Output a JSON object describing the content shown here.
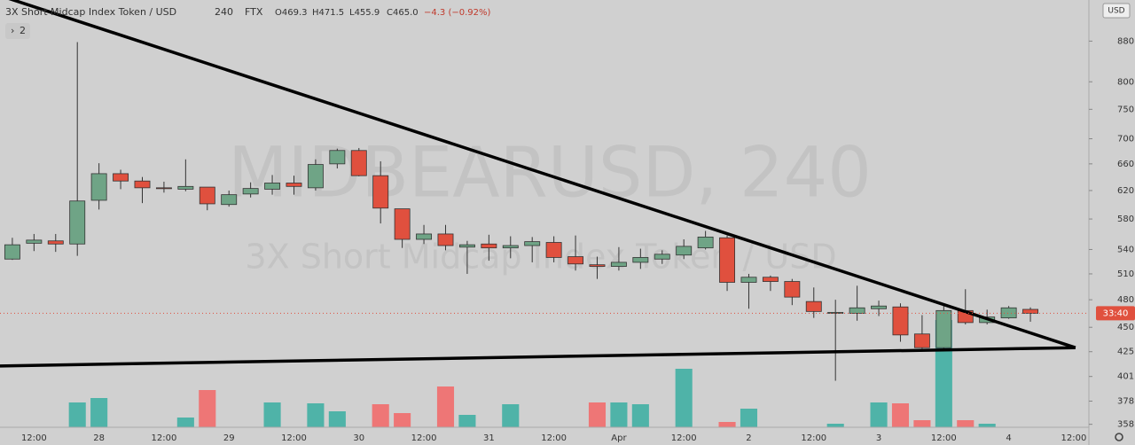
{
  "header": {
    "title": "3X Short Midcap Index Token / USD",
    "interval": "240",
    "exchange": "FTX",
    "open": "O469.3",
    "high": "H471.5",
    "low": "L455.9",
    "close": "C465.0",
    "change": "−4.3 (−0.92%)",
    "indicators": "2"
  },
  "watermark": {
    "symbol": "MIDBEARUSD, 240",
    "name": "3X Short Midcap Index Token / USD"
  },
  "ui": {
    "currency": "USD",
    "countdown": "33:40"
  },
  "chart_data": {
    "type": "candlestick",
    "log_scale": true,
    "grid": true,
    "up_color": "#6fa486",
    "down_color": "#e0503e",
    "volume_up_color": "#4fb3a8",
    "volume_down_color": "#ee7676",
    "open": [
      528,
      548,
      551,
      547,
      606,
      645,
      634,
      624,
      622,
      625,
      600,
      615,
      622,
      631,
      624,
      660,
      681,
      642,
      594,
      553,
      560,
      543,
      547,
      542,
      545,
      549,
      531,
      521,
      519,
      524,
      528,
      533,
      542,
      555,
      500,
      506,
      501,
      478,
      465,
      465,
      470,
      472,
      443,
      429,
      468,
      455,
      460,
      469.3
    ],
    "high": [
      555,
      560,
      560,
      878,
      661,
      651,
      640,
      633,
      667,
      625,
      620,
      632,
      643,
      642,
      667,
      684,
      685,
      664,
      594,
      572,
      572,
      551,
      559,
      557,
      556,
      557,
      558,
      531,
      543,
      541,
      539,
      553,
      564,
      558,
      510,
      508,
      504,
      494,
      480,
      496,
      479,
      476,
      463,
      474,
      492,
      469,
      473,
      471.5
    ],
    "low": [
      527,
      538,
      537,
      532,
      593,
      622,
      602,
      617,
      619,
      592,
      597,
      610,
      614,
      614,
      620,
      653,
      641,
      574,
      542,
      547,
      539,
      510,
      526,
      529,
      524,
      524,
      514,
      504,
      514,
      516,
      522,
      528,
      540,
      490,
      470,
      490,
      474,
      460,
      397,
      457,
      462,
      435,
      428,
      428,
      453,
      453,
      459,
      455.9
    ],
    "close": [
      546,
      552,
      547,
      605,
      645,
      634,
      624,
      623,
      626,
      601,
      614,
      623,
      631,
      626,
      659,
      681,
      642,
      595,
      553,
      560,
      545,
      546,
      542,
      545,
      550,
      530,
      522,
      519,
      524,
      530,
      534,
      544,
      556,
      500,
      506,
      501,
      483,
      467,
      466,
      471,
      473,
      442,
      429,
      468,
      455,
      461,
      471,
      465.0
    ],
    "volume": [
      0,
      0,
      0,
      28,
      33,
      0,
      0,
      0,
      11,
      42,
      0,
      0,
      28,
      0,
      27,
      18,
      0,
      26,
      16,
      0,
      46,
      14,
      0,
      26,
      0,
      0,
      0,
      28,
      28,
      26,
      0,
      66,
      0,
      6,
      21,
      0,
      0,
      0,
      4,
      0,
      28,
      27,
      8,
      121,
      8,
      4,
      0,
      0
    ],
    "y2lim": [
      0,
      482
    ],
    "ylim": [
      356,
      969
    ],
    "yticks": [
      {
        "value": 880,
        "label": "880.0"
      },
      {
        "value": 800,
        "label": "800.0"
      },
      {
        "value": 750,
        "label": "750.0"
      },
      {
        "value": 700,
        "label": "700.0"
      },
      {
        "value": 660,
        "label": "660.0"
      },
      {
        "value": 620,
        "label": "620.0"
      },
      {
        "value": 580,
        "label": "580.0"
      },
      {
        "value": 540,
        "label": "540.0"
      },
      {
        "value": 510,
        "label": "510.0"
      },
      {
        "value": 480,
        "label": "480.0"
      },
      {
        "value": 450,
        "label": "450.0"
      },
      {
        "value": 425,
        "label": "425.0"
      },
      {
        "value": 401,
        "label": "401.0"
      },
      {
        "value": 378.5,
        "label": "378.5"
      },
      {
        "value": 358.5,
        "label": "358.5"
      }
    ],
    "xlim": [
      -0.57,
      49.7
    ],
    "xticks": [
      {
        "value": 1,
        "label": "12:00"
      },
      {
        "value": 4,
        "label": "28"
      },
      {
        "value": 7,
        "label": "12:00"
      },
      {
        "value": 10,
        "label": "29"
      },
      {
        "value": 13,
        "label": "12:00"
      },
      {
        "value": 16,
        "label": "30"
      },
      {
        "value": 19,
        "label": "12:00"
      },
      {
        "value": 22,
        "label": "31"
      },
      {
        "value": 25,
        "label": "12:00"
      },
      {
        "value": 28,
        "label": "Apr"
      },
      {
        "value": 31,
        "label": "12:00"
      },
      {
        "value": 34,
        "label": "2"
      },
      {
        "value": 37,
        "label": "12:00"
      },
      {
        "value": 40,
        "label": "3"
      },
      {
        "value": 43,
        "label": "12:00"
      },
      {
        "value": 46,
        "label": "4"
      },
      {
        "value": 49,
        "label": "12:00"
      }
    ],
    "trendlines": [
      {
        "x": [
          -0.57,
          49.08
        ],
        "y": [
          979,
          429
        ]
      },
      {
        "x": [
          -0.57,
          49.08
        ],
        "y": [
          411,
          429
        ]
      }
    ]
  }
}
